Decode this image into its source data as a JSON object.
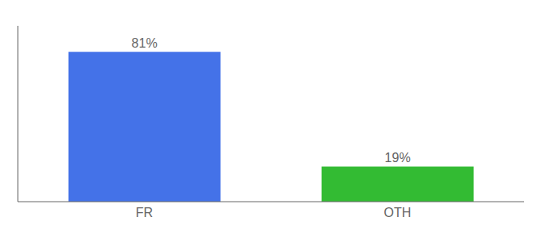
{
  "chart_data": {
    "type": "bar",
    "categories": [
      "FR",
      "OTH"
    ],
    "values": [
      81,
      19
    ],
    "value_labels": [
      "81%",
      "19%"
    ],
    "colors": [
      "#4472e8",
      "#33bb33"
    ],
    "ylim": [
      0,
      95
    ],
    "data_labels": true,
    "tick_labels": "x",
    "grid": false
  }
}
